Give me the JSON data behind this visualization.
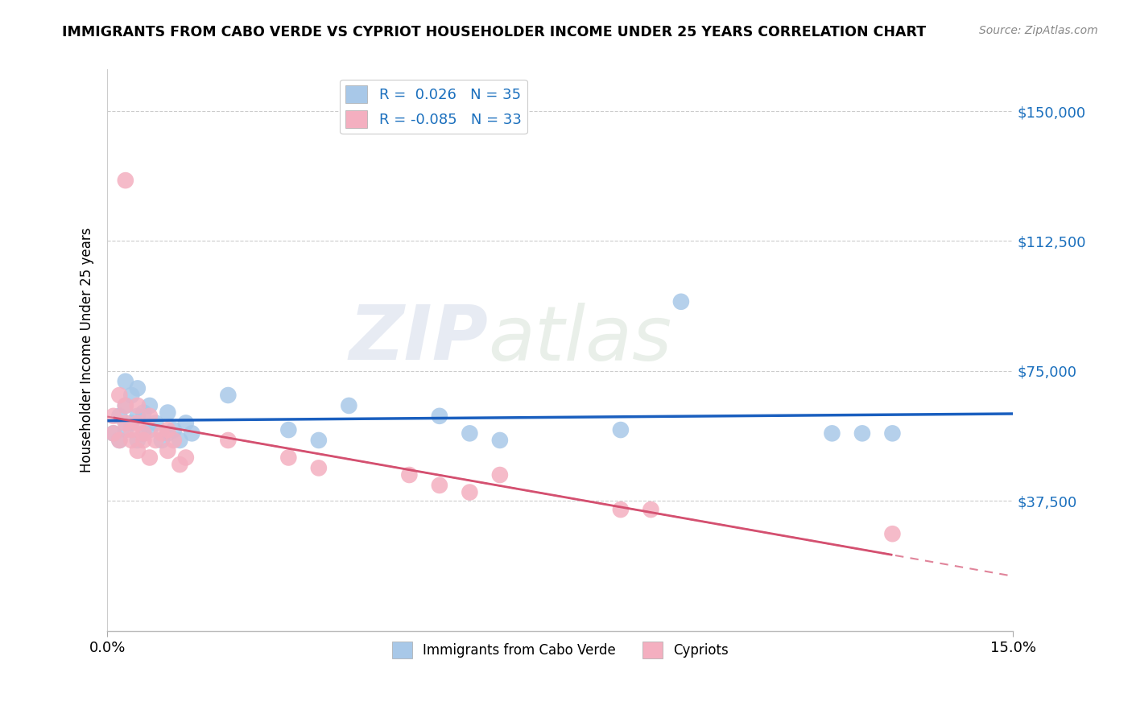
{
  "title": "IMMIGRANTS FROM CABO VERDE VS CYPRIOT HOUSEHOLDER INCOME UNDER 25 YEARS CORRELATION CHART",
  "source": "Source: ZipAtlas.com",
  "ylabel": "Householder Income Under 25 years",
  "xlim": [
    0.0,
    0.15
  ],
  "ylim": [
    0,
    162000
  ],
  "yticks": [
    37500,
    75000,
    112500,
    150000
  ],
  "ytick_labels": [
    "$37,500",
    "$75,000",
    "$112,500",
    "$150,000"
  ],
  "xticks": [
    0.0,
    0.15
  ],
  "xtick_labels": [
    "0.0%",
    "15.0%"
  ],
  "r_cabo_verde": 0.026,
  "n_cabo_verde": 35,
  "r_cypriot": -0.085,
  "n_cypriot": 33,
  "cabo_verde_color": "#a8c8e8",
  "cypriot_color": "#f4afc0",
  "cabo_verde_line_color": "#1a5fbf",
  "cypriot_line_color": "#d45070",
  "watermark_zip": "ZIP",
  "watermark_atlas": "atlas",
  "cabo_verde_x": [
    0.001,
    0.002,
    0.002,
    0.003,
    0.003,
    0.003,
    0.004,
    0.004,
    0.005,
    0.005,
    0.005,
    0.006,
    0.006,
    0.007,
    0.007,
    0.008,
    0.009,
    0.01,
    0.01,
    0.011,
    0.012,
    0.013,
    0.014,
    0.02,
    0.03,
    0.035,
    0.04,
    0.055,
    0.06,
    0.065,
    0.085,
    0.095,
    0.12,
    0.125,
    0.13
  ],
  "cabo_verde_y": [
    57000,
    55000,
    62000,
    58000,
    65000,
    72000,
    60000,
    68000,
    55000,
    62000,
    70000,
    57000,
    63000,
    58000,
    65000,
    60000,
    55000,
    57000,
    63000,
    58000,
    55000,
    60000,
    57000,
    68000,
    58000,
    55000,
    65000,
    62000,
    57000,
    55000,
    58000,
    95000,
    57000,
    57000,
    57000
  ],
  "cypriot_x": [
    0.001,
    0.001,
    0.002,
    0.002,
    0.003,
    0.003,
    0.003,
    0.004,
    0.004,
    0.005,
    0.005,
    0.005,
    0.006,
    0.006,
    0.007,
    0.007,
    0.008,
    0.009,
    0.01,
    0.01,
    0.011,
    0.012,
    0.013,
    0.02,
    0.03,
    0.035,
    0.05,
    0.055,
    0.06,
    0.065,
    0.085,
    0.09,
    0.13
  ],
  "cypriot_y": [
    57000,
    62000,
    55000,
    68000,
    60000,
    65000,
    130000,
    55000,
    58000,
    52000,
    60000,
    65000,
    55000,
    57000,
    50000,
    62000,
    55000,
    57000,
    52000,
    58000,
    55000,
    48000,
    50000,
    55000,
    50000,
    47000,
    45000,
    42000,
    40000,
    45000,
    35000,
    35000,
    28000
  ],
  "legend_bottom_label1": "Immigrants from Cabo Verde",
  "legend_bottom_label2": "Cypriots"
}
